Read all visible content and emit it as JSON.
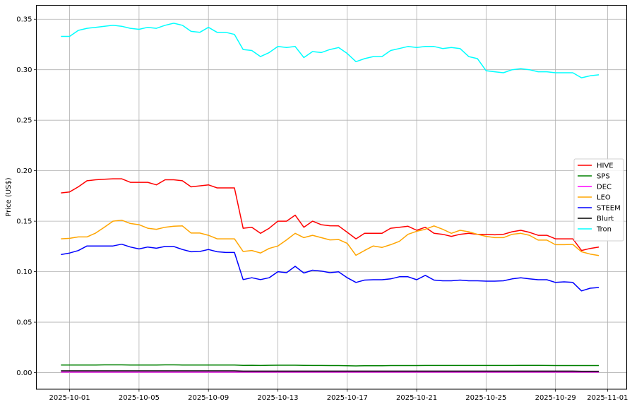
{
  "chart_data": {
    "type": "line",
    "title": "",
    "xlabel": "",
    "ylabel": "Price (US$)",
    "xlim": [
      "2025-09-29 02:00",
      "2025-11-02 02:30"
    ],
    "ylim": [
      -0.0164,
      0.3638
    ],
    "grid": true,
    "legend_position": "center-right",
    "x_ticks": [
      "2025-10-01",
      "2025-10-05",
      "2025-10-09",
      "2025-10-13",
      "2025-10-17",
      "2025-10-21",
      "2025-10-25",
      "2025-10-29",
      "2025-11-01"
    ],
    "y_ticks": [
      "0.00",
      "0.05",
      "0.10",
      "0.15",
      "0.20",
      "0.25",
      "0.30",
      "0.35"
    ],
    "x": [
      "2025-09-30 12:00",
      "2025-10-01 00:00",
      "2025-10-01 12:00",
      "2025-10-02 00:00",
      "2025-10-02 12:00",
      "2025-10-03 00:00",
      "2025-10-03 12:00",
      "2025-10-04 00:00",
      "2025-10-04 12:00",
      "2025-10-05 00:00",
      "2025-10-05 12:00",
      "2025-10-06 00:00",
      "2025-10-06 12:00",
      "2025-10-07 00:00",
      "2025-10-07 12:00",
      "2025-10-08 00:00",
      "2025-10-08 12:00",
      "2025-10-09 00:00",
      "2025-10-09 12:00",
      "2025-10-10 00:00",
      "2025-10-10 12:00",
      "2025-10-11 00:00",
      "2025-10-11 12:00",
      "2025-10-12 00:00",
      "2025-10-12 12:00",
      "2025-10-13 00:00",
      "2025-10-13 12:00",
      "2025-10-14 00:00",
      "2025-10-14 12:00",
      "2025-10-15 00:00",
      "2025-10-15 12:00",
      "2025-10-16 00:00",
      "2025-10-16 12:00",
      "2025-10-17 00:00",
      "2025-10-17 12:00",
      "2025-10-18 00:00",
      "2025-10-18 12:00",
      "2025-10-19 00:00",
      "2025-10-19 12:00",
      "2025-10-20 00:00",
      "2025-10-20 12:00",
      "2025-10-21 00:00",
      "2025-10-21 12:00",
      "2025-10-22 00:00",
      "2025-10-22 12:00",
      "2025-10-23 00:00",
      "2025-10-23 12:00",
      "2025-10-24 00:00",
      "2025-10-24 12:00",
      "2025-10-25 00:00",
      "2025-10-25 12:00",
      "2025-10-26 00:00",
      "2025-10-26 12:00",
      "2025-10-27 00:00",
      "2025-10-27 12:00",
      "2025-10-28 00:00",
      "2025-10-28 12:00",
      "2025-10-29 00:00",
      "2025-10-29 12:00",
      "2025-10-30 00:00",
      "2025-10-30 12:00",
      "2025-10-31 00:00",
      "2025-10-31 12:00"
    ],
    "series": [
      {
        "name": "HIVE",
        "color": "#ff0000",
        "values": [
          0.178,
          0.179,
          0.184,
          0.19,
          0.191,
          0.1915,
          0.192,
          0.192,
          0.1885,
          0.1885,
          0.1885,
          0.186,
          0.191,
          0.191,
          0.19,
          0.184,
          0.185,
          0.186,
          0.183,
          0.183,
          0.183,
          0.143,
          0.144,
          0.138,
          0.143,
          0.15,
          0.15,
          0.156,
          0.144,
          0.15,
          0.1465,
          0.1455,
          0.1453,
          0.139,
          0.1325,
          0.138,
          0.138,
          0.138,
          0.143,
          0.144,
          0.145,
          0.141,
          0.144,
          0.138,
          0.137,
          0.135,
          0.137,
          0.138,
          0.137,
          0.137,
          0.1365,
          0.137,
          0.1395,
          0.141,
          0.139,
          0.136,
          0.136,
          0.1325,
          0.1325,
          0.1325,
          0.121,
          0.123,
          0.1244
        ]
      },
      {
        "name": "SPS",
        "color": "#008000",
        "values": [
          0.0075,
          0.0075,
          0.0076,
          0.0076,
          0.0076,
          0.0077,
          0.0077,
          0.0077,
          0.0076,
          0.0076,
          0.0076,
          0.0076,
          0.0077,
          0.0077,
          0.0076,
          0.0076,
          0.0076,
          0.0076,
          0.0076,
          0.0075,
          0.0075,
          0.0072,
          0.0073,
          0.0071,
          0.0073,
          0.0074,
          0.0074,
          0.0074,
          0.0072,
          0.0071,
          0.0071,
          0.007,
          0.007,
          0.0069,
          0.0067,
          0.0069,
          0.0069,
          0.0069,
          0.007,
          0.007,
          0.007,
          0.007,
          0.0071,
          0.0071,
          0.0071,
          0.0071,
          0.0071,
          0.0071,
          0.0071,
          0.0071,
          0.0071,
          0.0071,
          0.0071,
          0.0072,
          0.0072,
          0.0072,
          0.0071,
          0.007,
          0.007,
          0.007,
          0.007,
          0.007,
          0.007
        ]
      },
      {
        "name": "DEC",
        "color": "#ff00ff",
        "values": [
          0.0005,
          0.0005,
          0.0005,
          0.0005,
          0.0005,
          0.0005,
          0.0005,
          0.0005,
          0.0005,
          0.0005,
          0.0005,
          0.0005,
          0.0005,
          0.0005,
          0.0005,
          0.0005,
          0.0005,
          0.0005,
          0.0005,
          0.0005,
          0.0005,
          0.0005,
          0.0005,
          0.0005,
          0.0005,
          0.0005,
          0.0005,
          0.0005,
          0.0005,
          0.0005,
          0.0005,
          0.0005,
          0.0005,
          0.0005,
          0.0005,
          0.0005,
          0.0005,
          0.0005,
          0.0005,
          0.0005,
          0.0005,
          0.0005,
          0.0005,
          0.0005,
          0.0005,
          0.0005,
          0.0005,
          0.0005,
          0.0005,
          0.0005,
          0.0005,
          0.0005,
          0.0005,
          0.0005,
          0.0005,
          0.0005,
          0.0005,
          0.0005,
          0.0005,
          0.0005,
          0.0005,
          0.0005,
          0.0005
        ]
      },
      {
        "name": "LEO",
        "color": "#ffa500",
        "values": [
          0.1325,
          0.133,
          0.1344,
          0.1344,
          0.1383,
          0.144,
          0.15,
          0.151,
          0.1477,
          0.1465,
          0.143,
          0.142,
          0.144,
          0.145,
          0.1453,
          0.1383,
          0.1383,
          0.136,
          0.1325,
          0.1325,
          0.1325,
          0.12,
          0.121,
          0.1185,
          0.123,
          0.1255,
          0.1315,
          0.138,
          0.1337,
          0.136,
          0.1337,
          0.1315,
          0.1318,
          0.128,
          0.1162,
          0.121,
          0.1255,
          0.124,
          0.1267,
          0.13,
          0.137,
          0.14,
          0.142,
          0.1453,
          0.142,
          0.138,
          0.141,
          0.1395,
          0.137,
          0.135,
          0.1337,
          0.1337,
          0.137,
          0.138,
          0.136,
          0.1313,
          0.1313,
          0.1267,
          0.1267,
          0.127,
          0.1197,
          0.1174,
          0.116
        ]
      },
      {
        "name": "STEEM",
        "color": "#0000ff",
        "values": [
          0.1169,
          0.1185,
          0.1209,
          0.1255,
          0.1255,
          0.1255,
          0.1255,
          0.1272,
          0.1244,
          0.1225,
          0.1244,
          0.1232,
          0.125,
          0.125,
          0.122,
          0.1197,
          0.12,
          0.122,
          0.1197,
          0.119,
          0.119,
          0.0922,
          0.094,
          0.0922,
          0.094,
          0.1,
          0.099,
          0.1053,
          0.0987,
          0.1015,
          0.1006,
          0.099,
          0.0999,
          0.094,
          0.0894,
          0.0917,
          0.092,
          0.092,
          0.0929,
          0.095,
          0.095,
          0.092,
          0.0964,
          0.0917,
          0.091,
          0.091,
          0.0917,
          0.091,
          0.091,
          0.0906,
          0.0906,
          0.091,
          0.0929,
          0.094,
          0.0929,
          0.092,
          0.092,
          0.0894,
          0.0899,
          0.0894,
          0.081,
          0.0836,
          0.0843
        ]
      },
      {
        "name": "Blurt",
        "color": "#000000",
        "values": [
          0.0018,
          0.0018,
          0.0018,
          0.0018,
          0.0018,
          0.0018,
          0.0018,
          0.0018,
          0.0018,
          0.0018,
          0.0018,
          0.0018,
          0.0018,
          0.0018,
          0.0018,
          0.0018,
          0.0018,
          0.0018,
          0.0018,
          0.0018,
          0.0018,
          0.0015,
          0.0015,
          0.0015,
          0.0015,
          0.0015,
          0.0015,
          0.0015,
          0.0015,
          0.0015,
          0.0015,
          0.0015,
          0.0015,
          0.0015,
          0.0015,
          0.0015,
          0.0015,
          0.0015,
          0.0015,
          0.0015,
          0.0015,
          0.0015,
          0.0015,
          0.0015,
          0.0015,
          0.0015,
          0.0015,
          0.0015,
          0.0015,
          0.0015,
          0.0015,
          0.0015,
          0.0015,
          0.0015,
          0.0015,
          0.0015,
          0.0015,
          0.0015,
          0.0015,
          0.0015,
          0.0014,
          0.0014,
          0.0014
        ]
      },
      {
        "name": "Tron",
        "color": "#00ffff",
        "values": [
          0.333,
          0.333,
          0.339,
          0.341,
          0.342,
          0.343,
          0.344,
          0.343,
          0.341,
          0.34,
          0.342,
          0.341,
          0.344,
          0.346,
          0.344,
          0.338,
          0.337,
          0.342,
          0.337,
          0.337,
          0.335,
          0.32,
          0.319,
          0.313,
          0.317,
          0.323,
          0.322,
          0.323,
          0.312,
          0.318,
          0.317,
          0.32,
          0.322,
          0.316,
          0.308,
          0.311,
          0.313,
          0.313,
          0.319,
          0.321,
          0.323,
          0.322,
          0.323,
          0.323,
          0.321,
          0.322,
          0.321,
          0.313,
          0.311,
          0.299,
          0.298,
          0.297,
          0.3,
          0.301,
          0.3,
          0.298,
          0.298,
          0.297,
          0.297,
          0.297,
          0.292,
          0.294,
          0.295
        ]
      }
    ]
  }
}
